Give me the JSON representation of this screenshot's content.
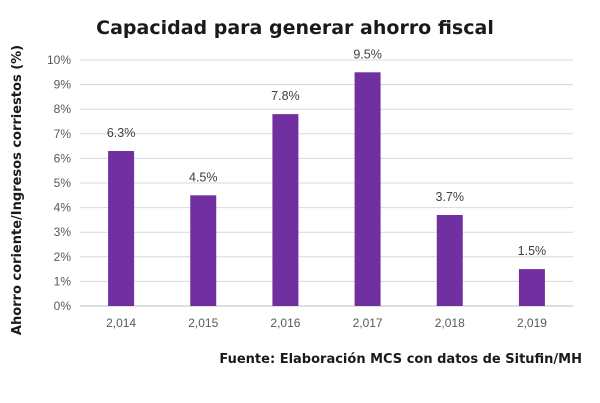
{
  "chart_data": {
    "type": "bar",
    "title": "Capacidad para generar ahorro fiscal",
    "xlabel": "",
    "ylabel": "Ahorro coriente/Ingresos corriestos (%)",
    "categories": [
      "2,014",
      "2,015",
      "2,016",
      "2,017",
      "2,018",
      "2,019"
    ],
    "values": [
      6.3,
      4.5,
      7.8,
      9.5,
      3.7,
      1.5
    ],
    "data_labels": [
      "6.3%",
      "4.5%",
      "7.8%",
      "9.5%",
      "3.7%",
      "1.5%"
    ],
    "y_ticks": [
      "0%",
      "1%",
      "2%",
      "3%",
      "4%",
      "5%",
      "6%",
      "7%",
      "8%",
      "9%",
      "10%"
    ],
    "ylim": [
      0,
      10
    ],
    "grid": true,
    "bar_color": "#7030A0",
    "source": "Fuente: Elaboración MCS con datos de Situfin/MH"
  }
}
